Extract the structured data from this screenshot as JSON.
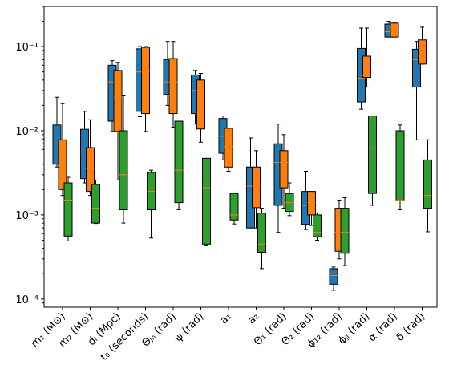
{
  "chart_data": {
    "type": "box",
    "log_y": true,
    "median_color": "#ff7f0e",
    "categories": [
      "m₁ (M⊙)",
      "m₂ (M⊙)",
      "dₗ (Mpc)",
      "t₀ (seconds)",
      "Θⱼₙ (rad)",
      "ψ (rad)",
      "a₁",
      "a₂",
      "Θ₁ (rad)",
      "Θ₂ (rad)",
      "ϕ₁₂ (rad)",
      "ϕⱼₗ (rad)",
      "α (rad)",
      "δ (rad)"
    ],
    "ylim": [
      8e-05,
      0.3
    ],
    "yticks": [
      {
        "value": 0.0001,
        "label": "10⁻⁴"
      },
      {
        "value": 0.001,
        "label": "10⁻³"
      },
      {
        "value": 0.01,
        "label": "10⁻²"
      },
      {
        "value": 0.1,
        "label": "10⁻¹"
      }
    ],
    "minor_yticks": [
      9e-05,
      0.0002,
      0.0003,
      0.0004,
      0.0005,
      0.0006,
      0.0007,
      0.0008,
      0.0009,
      0.002,
      0.003,
      0.004,
      0.005,
      0.006,
      0.007,
      0.008,
      0.009,
      0.02,
      0.03,
      0.04,
      0.05,
      0.06,
      0.07,
      0.08,
      0.09,
      0.2,
      0.3
    ],
    "series": [
      {
        "color": "#1f77b4",
        "boxes": [
          {
            "whislo": 0.0037,
            "q1": 0.004,
            "med": 0.005,
            "q3": 0.0117,
            "whishi": 0.025
          },
          {
            "whislo": 0.0024,
            "q1": 0.0027,
            "med": 0.0045,
            "q3": 0.0104,
            "whishi": 0.017
          },
          {
            "whislo": 0.0098,
            "q1": 0.013,
            "med": 0.038,
            "q3": 0.06,
            "whishi": 0.068
          },
          {
            "whislo": 0.0147,
            "q1": 0.017,
            "med": 0.05,
            "q3": 0.094,
            "whishi": 0.1
          },
          {
            "whislo": 0.02,
            "q1": 0.027,
            "med": 0.038,
            "q3": 0.07,
            "whishi": 0.115
          },
          {
            "whislo": 0.012,
            "q1": 0.016,
            "med": 0.03,
            "q3": 0.046,
            "whishi": 0.052
          },
          {
            "whislo": 0.0045,
            "q1": 0.0054,
            "med": 0.0086,
            "q3": 0.014,
            "whishi": 0.015
          },
          {
            "whislo": 0.0007,
            "q1": 0.0007,
            "med": 0.0022,
            "q3": 0.0037,
            "whishi": 0.0082
          },
          {
            "whislo": 0.00062,
            "q1": 0.0013,
            "med": 0.0042,
            "q3": 0.007,
            "whishi": 0.012
          },
          {
            "whislo": 0.00067,
            "q1": 0.00077,
            "med": 0.0013,
            "q3": 0.0019,
            "whishi": 0.0033
          },
          {
            "whislo": 0.000127,
            "q1": 0.00015,
            "med": 0.00019,
            "q3": 0.00023,
            "whishi": 0.00024
          },
          {
            "whislo": 0.018,
            "q1": 0.022,
            "med": 0.042,
            "q3": 0.095,
            "whishi": 0.166
          },
          {
            "whislo": 0.13,
            "q1": 0.13,
            "med": 0.15,
            "q3": 0.185,
            "whishi": 0.2
          },
          {
            "whislo": 0.0078,
            "q1": 0.033,
            "med": 0.07,
            "q3": 0.093,
            "whishi": 0.115
          }
        ]
      },
      {
        "color": "#ff7f0e",
        "boxes": [
          {
            "whislo": 0.0017,
            "q1": 0.002,
            "med": 0.0028,
            "q3": 0.0078,
            "whishi": 0.021
          },
          {
            "whislo": 0.0017,
            "q1": 0.0019,
            "med": 0.0035,
            "q3": 0.0063,
            "whishi": 0.0135
          },
          {
            "whislo": 0.0026,
            "q1": 0.0098,
            "med": 0.025,
            "q3": 0.052,
            "whishi": 0.065
          },
          {
            "whislo": 0.0098,
            "q1": 0.016,
            "med": 0.05,
            "q3": 0.098,
            "whishi": 0.1
          },
          {
            "whislo": 0.011,
            "q1": 0.016,
            "med": 0.038,
            "q3": 0.072,
            "whishi": 0.115
          },
          {
            "whislo": 0.0073,
            "q1": 0.0105,
            "med": 0.03,
            "q3": 0.04,
            "whishi": 0.048
          },
          {
            "whislo": 0.0033,
            "q1": 0.0037,
            "med": 0.0065,
            "q3": 0.0107,
            "whishi": 0.0107
          },
          {
            "whislo": 0.0007,
            "q1": 0.00122,
            "med": 0.0022,
            "q3": 0.0037,
            "whishi": 0.0058
          },
          {
            "whislo": 0.0012,
            "q1": 0.0021,
            "med": 0.0042,
            "q3": 0.0058,
            "whishi": 0.009
          },
          {
            "whislo": 0.00075,
            "q1": 0.001,
            "med": 0.0014,
            "q3": 0.0019,
            "whishi": 0.0019
          },
          {
            "whislo": 0.0003,
            "q1": 0.00037,
            "med": 0.00062,
            "q3": 0.0012,
            "whishi": 0.0015
          },
          {
            "whislo": 0.033,
            "q1": 0.043,
            "med": 0.045,
            "q3": 0.077,
            "whishi": 0.166
          },
          {
            "whislo": 0.13,
            "q1": 0.13,
            "med": 0.17,
            "q3": 0.19,
            "whishi": 0.19
          },
          {
            "whislo": 0.062,
            "q1": 0.062,
            "med": 0.077,
            "q3": 0.12,
            "whishi": 0.17
          }
        ]
      },
      {
        "color": "#2ca02c",
        "boxes": [
          {
            "whislo": 0.00049,
            "q1": 0.00056,
            "med": 0.0015,
            "q3": 0.0024,
            "whishi": 0.0028
          },
          {
            "whislo": 0.00079,
            "q1": 0.0008,
            "med": 0.0012,
            "q3": 0.0023,
            "whishi": 0.0026
          },
          {
            "whislo": 0.0008,
            "q1": 0.00115,
            "med": 0.003,
            "q3": 0.01,
            "whishi": 0.026
          },
          {
            "whislo": 0.00053,
            "q1": 0.00115,
            "med": 0.0019,
            "q3": 0.0032,
            "whishi": 0.0034
          },
          {
            "whislo": 0.00115,
            "q1": 0.0014,
            "med": 0.0034,
            "q3": 0.013,
            "whishi": 0.013
          },
          {
            "whislo": 0.00043,
            "q1": 0.00045,
            "med": 0.0021,
            "q3": 0.0047,
            "whishi": 0.0047
          },
          {
            "whislo": 0.00078,
            "q1": 0.00087,
            "med": 0.001,
            "q3": 0.0018,
            "whishi": 0.0018
          },
          {
            "whislo": 0.00023,
            "q1": 0.00036,
            "med": 0.00045,
            "q3": 0.00105,
            "whishi": 0.0012
          },
          {
            "whislo": 0.00098,
            "q1": 0.0011,
            "med": 0.0014,
            "q3": 0.0018,
            "whishi": 0.0024
          },
          {
            "whislo": 0.0005,
            "q1": 0.00055,
            "med": 0.00062,
            "q3": 0.001,
            "whishi": 0.00105
          },
          {
            "whislo": 0.00025,
            "q1": 0.00035,
            "med": 0.00062,
            "q3": 0.0012,
            "whishi": 0.0016
          },
          {
            "whislo": 0.0013,
            "q1": 0.0018,
            "med": 0.0062,
            "q3": 0.015,
            "whishi": 0.015
          },
          {
            "whislo": 0.00115,
            "q1": 0.0015,
            "med": 0.0015,
            "q3": 0.01,
            "whishi": 0.0117
          },
          {
            "whislo": 0.00063,
            "q1": 0.0012,
            "med": 0.0017,
            "q3": 0.0045,
            "whishi": 0.0078
          }
        ]
      }
    ]
  }
}
